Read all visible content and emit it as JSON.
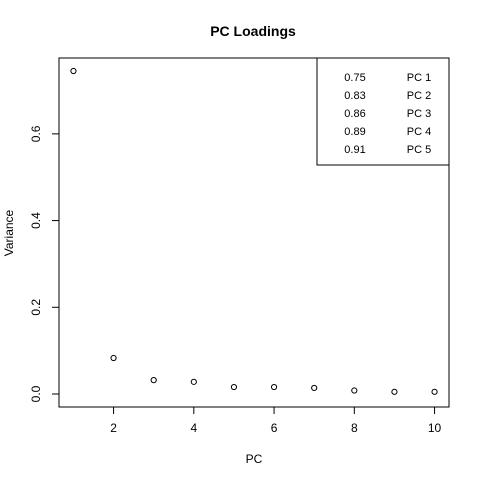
{
  "chart_data": {
    "type": "scatter",
    "title": "PC Loadings",
    "xlabel": "PC",
    "ylabel": "Variance",
    "xlim": [
      0.64,
      10.36
    ],
    "ylim": [
      -0.03,
      0.775
    ],
    "x_ticks": [
      2,
      4,
      6,
      8,
      10
    ],
    "y_ticks": [
      0.0,
      0.2,
      0.4,
      0.6
    ],
    "x_tick_labels": [
      "2",
      "4",
      "6",
      "8",
      "10"
    ],
    "y_tick_labels": [
      "0.0",
      "0.2",
      "0.4",
      "0.6"
    ],
    "grid": false,
    "marker": "open-circle",
    "x": [
      1,
      2,
      3,
      4,
      5,
      6,
      7,
      8,
      9,
      10
    ],
    "y": [
      0.745,
      0.083,
      0.032,
      0.028,
      0.016,
      0.016,
      0.014,
      0.008,
      0.005,
      0.005
    ],
    "legend": {
      "placement": "top-right",
      "entries": [
        {
          "value": "0.75",
          "label": "PC 1"
        },
        {
          "value": "0.83",
          "label": "PC 2"
        },
        {
          "value": "0.86",
          "label": "PC 3"
        },
        {
          "value": "0.89",
          "label": "PC 4"
        },
        {
          "value": "0.91",
          "label": "PC 5"
        }
      ]
    }
  }
}
